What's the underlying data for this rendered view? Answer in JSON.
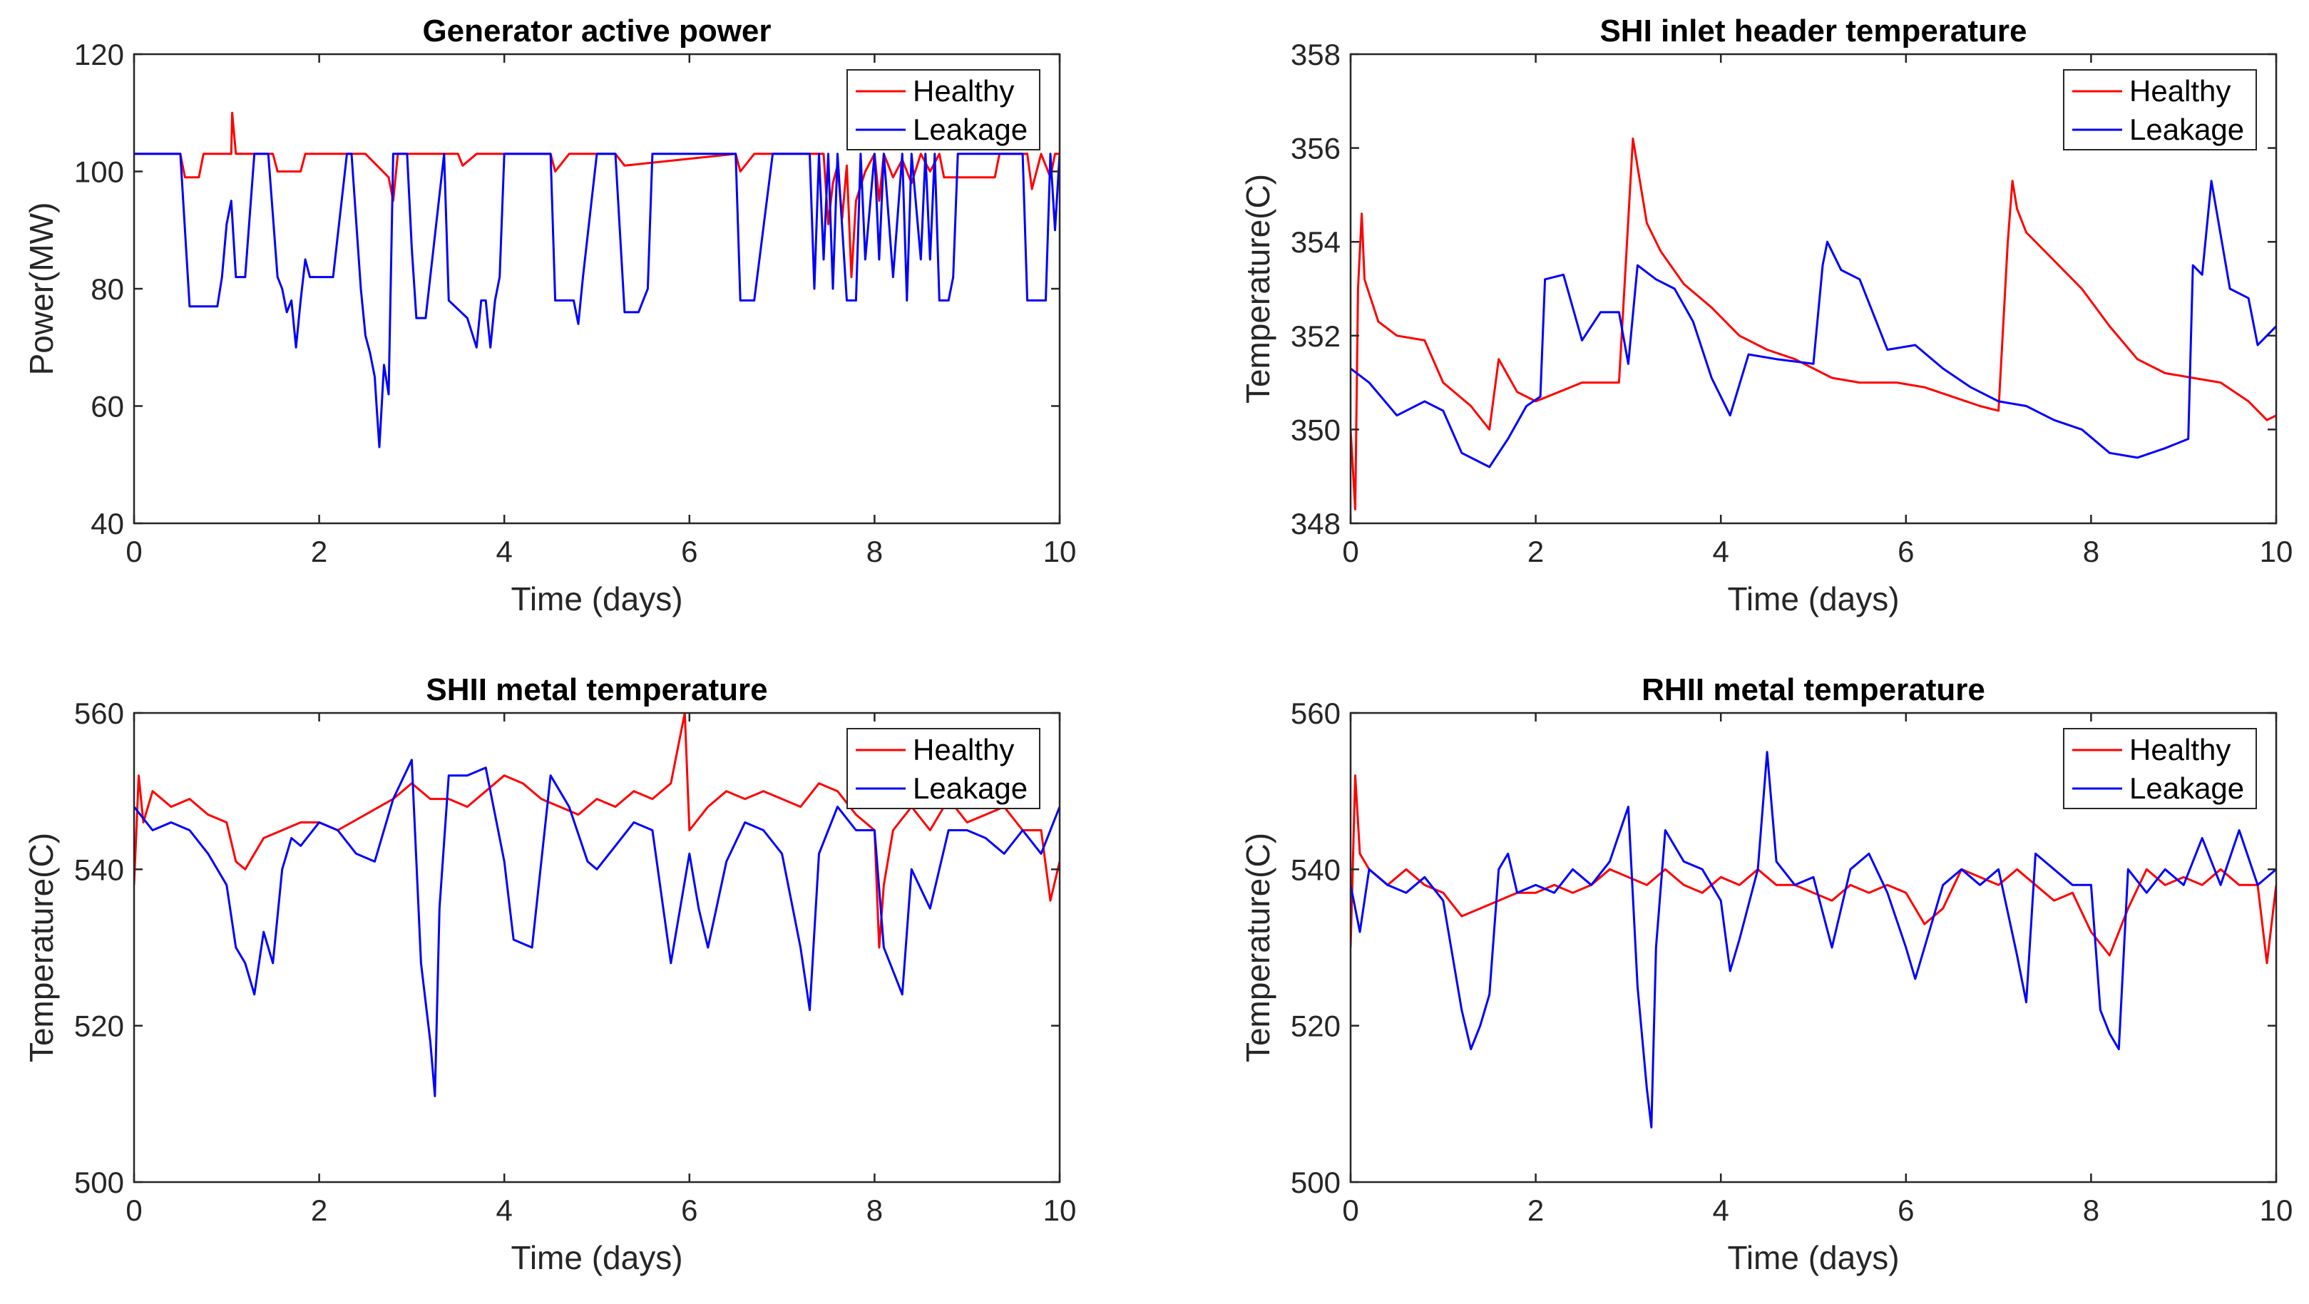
{
  "figure": {
    "background": "#ffffff",
    "series_colors": {
      "Healthy": "#ff0000",
      "Leakage": "#0000ff"
    }
  },
  "chart_data": [
    {
      "type": "line",
      "title": "Generator active power",
      "xlabel": "Time (days)",
      "ylabel": "Power(MW)",
      "xlim": [
        0,
        10
      ],
      "ylim": [
        40,
        120
      ],
      "xticks": [
        0,
        2,
        4,
        6,
        8,
        10
      ],
      "yticks": [
        40,
        60,
        80,
        100,
        120
      ],
      "grid": false,
      "legend": "top-right",
      "series": [
        {
          "name": "Healthy",
          "x": [
            0,
            0.5,
            0.55,
            0.7,
            0.75,
            1.05,
            1.06,
            1.1,
            1.5,
            1.55,
            1.8,
            1.85,
            2.0,
            2.5,
            2.75,
            2.8,
            2.85,
            3.2,
            3.5,
            3.55,
            3.7,
            4.5,
            4.55,
            4.7,
            5.2,
            5.3,
            6.5,
            6.55,
            6.7,
            7.45,
            7.5,
            7.55,
            7.6,
            7.65,
            7.7,
            7.75,
            7.8,
            7.9,
            8.0,
            8.05,
            8.1,
            8.2,
            8.3,
            8.4,
            8.5,
            8.6,
            8.7,
            8.75,
            9.3,
            9.35,
            9.5,
            9.65,
            9.7,
            9.8,
            9.9,
            9.95,
            10
          ],
          "values": [
            103,
            103,
            99,
            99,
            103,
            103,
            110,
            103,
            103,
            100,
            100,
            103,
            103,
            103,
            99,
            95,
            103,
            103,
            103,
            101,
            103,
            103,
            100,
            103,
            103,
            101,
            103,
            100,
            103,
            103,
            91,
            98,
            101,
            92,
            101,
            82,
            95,
            100,
            103,
            95,
            103,
            99,
            102,
            98,
            103,
            100,
            103,
            99,
            99,
            103,
            103,
            103,
            97,
            103,
            99,
            103,
            103
          ]
        },
        {
          "name": "Leakage",
          "x": [
            0,
            0.5,
            0.6,
            0.9,
            0.95,
            1.0,
            1.05,
            1.1,
            1.15,
            1.2,
            1.3,
            1.45,
            1.55,
            1.6,
            1.65,
            1.7,
            1.75,
            1.8,
            1.85,
            1.9,
            2.0,
            2.05,
            2.15,
            2.3,
            2.35,
            2.45,
            2.5,
            2.55,
            2.6,
            2.62,
            2.65,
            2.7,
            2.75,
            2.8,
            2.85,
            2.95,
            3.0,
            3.05,
            3.15,
            3.35,
            3.4,
            3.6,
            3.7,
            3.75,
            3.8,
            3.85,
            3.9,
            3.95,
            4.0,
            4.5,
            4.55,
            4.75,
            4.8,
            4.85,
            5.0,
            5.2,
            5.3,
            5.45,
            5.55,
            5.6,
            6.5,
            6.55,
            6.7,
            6.9,
            7.0,
            7.3,
            7.35,
            7.4,
            7.45,
            7.5,
            7.55,
            7.6,
            7.7,
            7.8,
            7.85,
            7.9,
            8.0,
            8.05,
            8.1,
            8.2,
            8.3,
            8.35,
            8.4,
            8.5,
            8.55,
            8.6,
            8.65,
            8.7,
            8.8,
            8.85,
            8.9,
            8.95,
            9.0,
            9.6,
            9.65,
            9.85,
            9.9,
            9.95,
            10
          ],
          "values": [
            103,
            103,
            77,
            77,
            82,
            91,
            95,
            82,
            82,
            82,
            103,
            103,
            82,
            80,
            76,
            78,
            70,
            78,
            85,
            82,
            82,
            82,
            82,
            103,
            103,
            80,
            72,
            69,
            65,
            60,
            53,
            67,
            62,
            103,
            103,
            103,
            87,
            75,
            75,
            103,
            78,
            75,
            70,
            78,
            78,
            70,
            78,
            82,
            103,
            103,
            78,
            78,
            74,
            82,
            103,
            103,
            76,
            76,
            80,
            103,
            103,
            78,
            78,
            103,
            103,
            103,
            80,
            103,
            85,
            103,
            80,
            103,
            78,
            78,
            103,
            85,
            103,
            85,
            103,
            82,
            103,
            78,
            103,
            85,
            103,
            85,
            103,
            78,
            78,
            82,
            103,
            103,
            103,
            103,
            78,
            78,
            103,
            90,
            103
          ]
        }
      ]
    },
    {
      "type": "line",
      "title": "SHI inlet header temperature",
      "xlabel": "Time (days)",
      "ylabel": "Temperature(C)",
      "xlim": [
        0,
        10
      ],
      "ylim": [
        348,
        358
      ],
      "xticks": [
        0,
        2,
        4,
        6,
        8,
        10
      ],
      "yticks": [
        348,
        350,
        352,
        354,
        356,
        358
      ],
      "grid": false,
      "legend": "top-right",
      "series": [
        {
          "name": "Healthy",
          "x": [
            0,
            0.05,
            0.08,
            0.12,
            0.15,
            0.3,
            0.5,
            0.8,
            1.0,
            1.3,
            1.5,
            1.6,
            1.8,
            2.0,
            2.5,
            2.9,
            3.05,
            3.15,
            3.2,
            3.35,
            3.6,
            3.9,
            4.2,
            4.5,
            4.8,
            5.2,
            5.5,
            5.9,
            6.2,
            6.5,
            6.8,
            7.0,
            7.1,
            7.15,
            7.2,
            7.3,
            7.6,
            7.9,
            8.2,
            8.5,
            8.8,
            9.1,
            9.4,
            9.7,
            9.9,
            10
          ],
          "values": [
            350,
            348.3,
            353,
            354.6,
            353.2,
            352.3,
            352,
            351.9,
            351,
            350.5,
            350,
            351.5,
            350.8,
            350.6,
            351,
            351,
            356.2,
            355,
            354.4,
            353.8,
            353.1,
            352.6,
            352,
            351.7,
            351.5,
            351.1,
            351,
            351,
            350.9,
            350.7,
            350.5,
            350.4,
            354,
            355.3,
            354.7,
            354.2,
            353.6,
            353,
            352.2,
            351.5,
            351.2,
            351.1,
            351,
            350.6,
            350.2,
            350.3
          ]
        },
        {
          "name": "Leakage",
          "x": [
            0,
            0.2,
            0.5,
            0.8,
            1.0,
            1.2,
            1.5,
            1.7,
            1.9,
            2.05,
            2.1,
            2.3,
            2.5,
            2.7,
            2.9,
            3.0,
            3.1,
            3.3,
            3.5,
            3.7,
            3.9,
            4.1,
            4.3,
            4.6,
            5.0,
            5.1,
            5.15,
            5.3,
            5.5,
            5.8,
            6.1,
            6.4,
            6.7,
            7.0,
            7.3,
            7.6,
            7.9,
            8.2,
            8.5,
            8.8,
            9.05,
            9.1,
            9.2,
            9.3,
            9.5,
            9.7,
            9.8,
            10
          ],
          "values": [
            351.3,
            351,
            350.3,
            350.6,
            350.4,
            349.5,
            349.2,
            349.8,
            350.5,
            350.7,
            353.2,
            353.3,
            351.9,
            352.5,
            352.5,
            351.4,
            353.5,
            353.2,
            353,
            352.3,
            351.1,
            350.3,
            351.6,
            351.5,
            351.4,
            353.5,
            354,
            353.4,
            353.2,
            351.7,
            351.8,
            351.3,
            350.9,
            350.6,
            350.5,
            350.2,
            350,
            349.5,
            349.4,
            349.6,
            349.8,
            353.5,
            353.3,
            355.3,
            353,
            352.8,
            351.8,
            352.2
          ]
        }
      ]
    },
    {
      "type": "line",
      "title": "SHII metal temperature",
      "xlabel": "Time (days)",
      "ylabel": "Temperature(C)",
      "xlim": [
        0,
        10
      ],
      "ylim": [
        500,
        560
      ],
      "xticks": [
        0,
        2,
        4,
        6,
        8,
        10
      ],
      "yticks": [
        500,
        520,
        540,
        560
      ],
      "grid": false,
      "legend": "top-right",
      "series": [
        {
          "name": "Healthy",
          "x": [
            0,
            0.05,
            0.1,
            0.2,
            0.4,
            0.6,
            0.8,
            1.0,
            1.1,
            1.2,
            1.4,
            1.6,
            1.8,
            2.0,
            2.2,
            2.5,
            2.8,
            3.0,
            3.2,
            3.4,
            3.6,
            3.8,
            4.0,
            4.2,
            4.4,
            4.6,
            4.8,
            5.0,
            5.2,
            5.4,
            5.6,
            5.8,
            5.95,
            6.0,
            6.2,
            6.4,
            6.6,
            6.8,
            7.0,
            7.2,
            7.4,
            7.6,
            7.8,
            8.0,
            8.05,
            8.1,
            8.2,
            8.4,
            8.6,
            8.8,
            9.0,
            9.2,
            9.4,
            9.6,
            9.8,
            9.9,
            10
          ],
          "values": [
            538,
            552,
            546,
            550,
            548,
            549,
            547,
            546,
            541,
            540,
            544,
            545,
            546,
            546,
            545,
            547,
            549,
            551,
            549,
            549,
            548,
            550,
            552,
            551,
            549,
            548,
            547,
            549,
            548,
            550,
            549,
            551,
            560,
            545,
            548,
            550,
            549,
            550,
            549,
            548,
            551,
            550,
            547,
            545,
            530,
            538,
            545,
            548,
            545,
            549,
            546,
            547,
            548,
            545,
            545,
            536,
            541
          ]
        },
        {
          "name": "Leakage",
          "x": [
            0,
            0.2,
            0.4,
            0.6,
            0.8,
            1.0,
            1.1,
            1.2,
            1.3,
            1.4,
            1.5,
            1.6,
            1.7,
            1.8,
            2.0,
            2.2,
            2.4,
            2.6,
            2.8,
            3.0,
            3.1,
            3.2,
            3.25,
            3.3,
            3.4,
            3.6,
            3.8,
            4.0,
            4.1,
            4.3,
            4.5,
            4.7,
            4.9,
            5.0,
            5.2,
            5.4,
            5.6,
            5.8,
            6.0,
            6.1,
            6.2,
            6.4,
            6.6,
            6.8,
            7.0,
            7.2,
            7.3,
            7.4,
            7.6,
            7.8,
            8.0,
            8.1,
            8.2,
            8.3,
            8.4,
            8.6,
            8.8,
            9.0,
            9.2,
            9.4,
            9.6,
            9.8,
            10
          ],
          "values": [
            548,
            545,
            546,
            545,
            542,
            538,
            530,
            528,
            524,
            532,
            528,
            540,
            544,
            543,
            546,
            545,
            542,
            541,
            549,
            554,
            528,
            518,
            511,
            535,
            552,
            552,
            553,
            541,
            531,
            530,
            552,
            548,
            541,
            540,
            543,
            546,
            545,
            528,
            542,
            535,
            530,
            541,
            546,
            545,
            542,
            530,
            522,
            542,
            548,
            545,
            545,
            530,
            527,
            524,
            540,
            535,
            545,
            545,
            544,
            542,
            545,
            542,
            548
          ]
        }
      ]
    },
    {
      "type": "line",
      "title": "RHII metal temperature",
      "xlabel": "Time (days)",
      "ylabel": "Temperature(C)",
      "xlim": [
        0,
        10
      ],
      "ylim": [
        500,
        560
      ],
      "xticks": [
        0,
        2,
        4,
        6,
        8,
        10
      ],
      "yticks": [
        500,
        520,
        540,
        560
      ],
      "grid": false,
      "legend": "top-right",
      "series": [
        {
          "name": "Healthy",
          "x": [
            0,
            0.05,
            0.1,
            0.2,
            0.4,
            0.6,
            0.8,
            1.0,
            1.2,
            1.4,
            1.6,
            1.8,
            2.0,
            2.2,
            2.4,
            2.6,
            2.8,
            3.0,
            3.2,
            3.4,
            3.6,
            3.8,
            4.0,
            4.2,
            4.4,
            4.6,
            4.8,
            5.0,
            5.2,
            5.4,
            5.6,
            5.8,
            6.0,
            6.2,
            6.4,
            6.6,
            6.8,
            7.0,
            7.2,
            7.4,
            7.6,
            7.8,
            8.0,
            8.2,
            8.4,
            8.6,
            8.8,
            9.0,
            9.2,
            9.4,
            9.6,
            9.8,
            9.9,
            10
          ],
          "values": [
            530,
            552,
            542,
            540,
            538,
            540,
            538,
            537,
            534,
            535,
            536,
            537,
            537,
            538,
            537,
            538,
            540,
            539,
            538,
            540,
            538,
            537,
            539,
            538,
            540,
            538,
            538,
            537,
            536,
            538,
            537,
            538,
            537,
            533,
            535,
            540,
            539,
            538,
            540,
            538,
            536,
            537,
            532,
            529,
            535,
            540,
            538,
            539,
            538,
            540,
            538,
            538,
            528,
            538
          ]
        },
        {
          "name": "Leakage",
          "x": [
            0,
            0.1,
            0.2,
            0.4,
            0.6,
            0.8,
            1.0,
            1.1,
            1.2,
            1.3,
            1.4,
            1.5,
            1.6,
            1.7,
            1.8,
            2.0,
            2.2,
            2.4,
            2.6,
            2.8,
            3.0,
            3.1,
            3.2,
            3.25,
            3.3,
            3.4,
            3.6,
            3.8,
            4.0,
            4.1,
            4.2,
            4.4,
            4.5,
            4.6,
            4.8,
            5.0,
            5.2,
            5.4,
            5.6,
            5.8,
            6.0,
            6.1,
            6.2,
            6.4,
            6.6,
            6.8,
            7.0,
            7.2,
            7.3,
            7.4,
            7.6,
            7.8,
            8.0,
            8.1,
            8.2,
            8.3,
            8.4,
            8.6,
            8.8,
            9.0,
            9.2,
            9.4,
            9.6,
            9.8,
            10
          ],
          "values": [
            538,
            532,
            540,
            538,
            537,
            539,
            536,
            529,
            522,
            517,
            520,
            524,
            540,
            542,
            537,
            538,
            537,
            540,
            538,
            541,
            548,
            525,
            512,
            507,
            530,
            545,
            541,
            540,
            536,
            527,
            531,
            540,
            555,
            541,
            538,
            539,
            530,
            540,
            542,
            537,
            530,
            526,
            530,
            538,
            540,
            538,
            540,
            529,
            523,
            542,
            540,
            538,
            538,
            522,
            519,
            517,
            540,
            537,
            540,
            538,
            544,
            538,
            545,
            538,
            540
          ]
        }
      ]
    }
  ]
}
